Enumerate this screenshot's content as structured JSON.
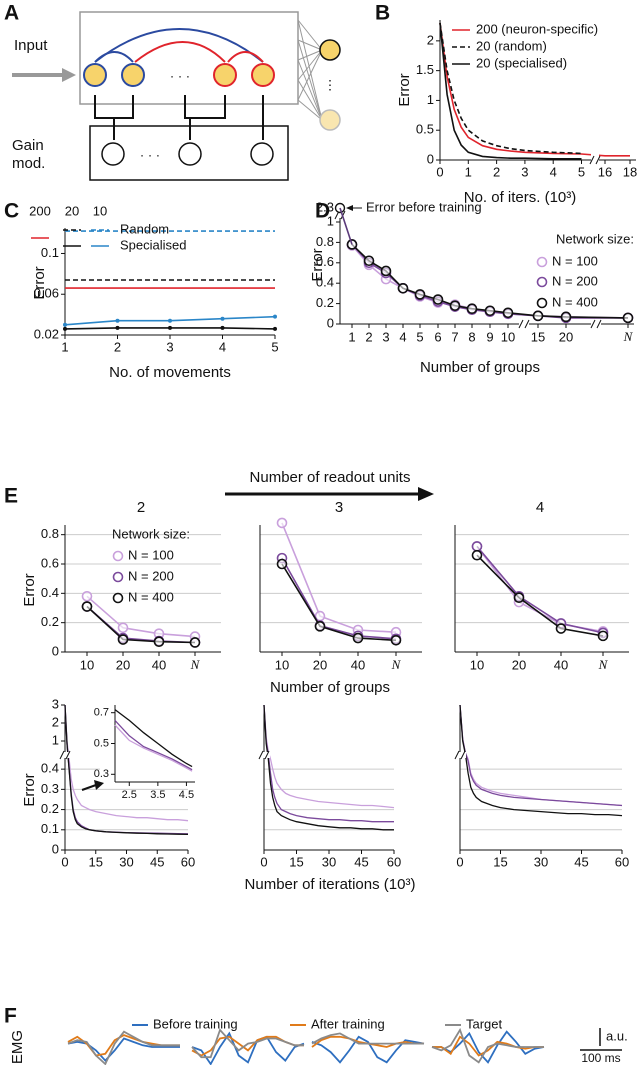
{
  "panel_a": {
    "label": "A",
    "input": "Input",
    "gain_mod": [
      "Gain",
      "mod."
    ],
    "dots": "· · ·",
    "vdots": "⋮"
  },
  "readout_header": "Number of readout units",
  "emg": {
    "ylabel": "EMG",
    "amplitude": "a.u.",
    "time": "100 ms"
  },
  "chart_data": [
    {
      "panel": "B",
      "type": "line",
      "ylabel": "Error",
      "xlabel": "No. of iters. (10³)",
      "x": [
        0,
        0.25,
        0.5,
        0.75,
        1,
        1.5,
        2,
        2.5,
        3,
        4,
        5,
        16,
        17,
        18
      ],
      "xlim": [
        0,
        18
      ],
      "xticks": [
        0,
        1,
        2,
        3,
        4,
        5,
        16,
        18
      ],
      "ylim": [
        0,
        2.35
      ],
      "yticks": [
        0,
        0.5,
        1,
        1.5,
        2
      ],
      "series": [
        {
          "name": "200 (neuron-specific)",
          "color": "#e0242c",
          "dash": false,
          "values": [
            2.3,
            1.4,
            0.85,
            0.55,
            0.38,
            0.24,
            0.18,
            0.15,
            0.13,
            0.11,
            0.1,
            0.07,
            0.07,
            0.07
          ]
        },
        {
          "name": "20 (random)",
          "color": "#111111",
          "dash": true,
          "values": [
            2.3,
            1.5,
            1.0,
            0.7,
            0.5,
            0.32,
            0.24,
            0.19,
            0.16,
            0.13,
            0.11,
            null,
            null,
            null
          ]
        },
        {
          "name": "20 (specialised)",
          "color": "#111111",
          "dash": false,
          "values": [
            2.3,
            1.1,
            0.5,
            0.25,
            0.13,
            0.06,
            0.04,
            0.03,
            0.03,
            0.02,
            0.02,
            null,
            null,
            null
          ]
        }
      ]
    },
    {
      "panel": "C",
      "type": "line",
      "ylabel": "Error",
      "xlabel": "No. of movements",
      "legend": {
        "columns": [
          "200",
          "20",
          "10"
        ],
        "rows": [
          "Random",
          "Specialised"
        ]
      },
      "x": [
        1,
        2,
        3,
        4,
        5
      ],
      "xlim": [
        1,
        5
      ],
      "xticks": [
        1,
        2,
        3,
        4,
        5
      ],
      "ylim": [
        0.02,
        0.125
      ],
      "yticks": [
        0.02,
        0.06,
        0.1
      ],
      "series": [
        {
          "color": "#e0242c",
          "dash": false,
          "values": [
            0.066,
            0.066,
            0.066,
            0.066,
            0.066
          ]
        },
        {
          "color": "#111111",
          "dash": true,
          "values": [
            0.074,
            0.074,
            0.074,
            0.074,
            0.074
          ]
        },
        {
          "color": "#2a86c8",
          "dash": true,
          "values": [
            0.122,
            0.122,
            0.122,
            0.122,
            0.122
          ]
        },
        {
          "color": "#111111",
          "dash": false,
          "marker": "dot",
          "values": [
            0.026,
            0.027,
            0.027,
            0.027,
            0.026
          ]
        },
        {
          "color": "#2a86c8",
          "dash": false,
          "marker": "dot",
          "values": [
            0.03,
            0.034,
            0.034,
            0.036,
            0.038
          ]
        }
      ]
    },
    {
      "panel": "D",
      "type": "line",
      "ylabel": "Error",
      "xlabel": "Number of groups",
      "legend_title": "Network size:",
      "initial": {
        "label": "Error before training",
        "value": 2.3
      },
      "categories": [
        "1",
        "2",
        "3",
        "4",
        "5",
        "6",
        "7",
        "8",
        "9",
        "10",
        "15",
        "20",
        "N"
      ],
      "ylim": [
        0,
        2.3
      ],
      "yticks": [
        0,
        0.2,
        0.4,
        0.6,
        0.8,
        1,
        2.3
      ],
      "series": [
        {
          "name": "N = 100",
          "color": "#c9a0dc",
          "marker": "open",
          "values": [
            0.77,
            0.58,
            0.44,
            0.35,
            0.27,
            0.21,
            0.19,
            0.15,
            0.12,
            0.1,
            0.08,
            0.07,
            0.06
          ]
        },
        {
          "name": "N = 200",
          "color": "#7b4a9c",
          "marker": "open",
          "values": [
            0.78,
            0.6,
            0.5,
            0.35,
            0.28,
            0.22,
            0.17,
            0.14,
            0.12,
            0.1,
            0.08,
            0.06,
            0.06
          ]
        },
        {
          "name": "N = 400",
          "color": "#111111",
          "marker": "open",
          "values": [
            0.78,
            0.62,
            0.52,
            0.35,
            0.29,
            0.24,
            0.18,
            0.15,
            0.13,
            0.11,
            0.08,
            0.07,
            0.06
          ]
        }
      ]
    },
    {
      "panel": "E",
      "type": "line",
      "title": "2",
      "ylabel": "Error",
      "legend_title": "Network size:",
      "grid": true,
      "categories": [
        "10",
        "20",
        "40",
        "N"
      ],
      "ylim": [
        0,
        0.9
      ],
      "yticks": [
        0,
        0.2,
        0.4,
        0.6,
        0.8
      ],
      "series": [
        {
          "name": "N = 100",
          "color": "#c9a0dc",
          "marker": "open",
          "values": [
            0.38,
            0.165,
            0.125,
            0.105
          ]
        },
        {
          "name": "N = 200",
          "color": "#7b4a9c",
          "marker": "open",
          "values": [
            0.31,
            0.095,
            0.075,
            0.065
          ]
        },
        {
          "name": "N = 400",
          "color": "#111111",
          "marker": "open",
          "values": [
            0.31,
            0.085,
            0.07,
            0.065
          ]
        }
      ]
    },
    {
      "type": "line",
      "title": "3",
      "xlabel": "Number of groups",
      "grid": true,
      "categories": [
        "10",
        "20",
        "40",
        "N"
      ],
      "ylim": [
        0,
        0.9
      ],
      "yticks": [
        0,
        0.2,
        0.4,
        0.6,
        0.8
      ],
      "series": [
        {
          "color": "#c9a0dc",
          "marker": "open",
          "values": [
            0.88,
            0.245,
            0.15,
            0.135
          ]
        },
        {
          "color": "#7b4a9c",
          "marker": "open",
          "values": [
            0.64,
            0.18,
            0.11,
            0.09
          ]
        },
        {
          "color": "#111111",
          "marker": "open",
          "values": [
            0.6,
            0.175,
            0.095,
            0.08
          ]
        }
      ]
    },
    {
      "type": "line",
      "title": "4",
      "grid": true,
      "categories": [
        "10",
        "20",
        "40",
        "N"
      ],
      "ylim": [
        0,
        0.9
      ],
      "yticks": [
        0,
        0.2,
        0.4,
        0.6,
        0.8
      ],
      "series": [
        {
          "color": "#c9a0dc",
          "marker": "open",
          "values": [
            0.72,
            0.34,
            0.19,
            0.14
          ]
        },
        {
          "color": "#7b4a9c",
          "marker": "open",
          "values": [
            0.72,
            0.38,
            0.195,
            0.13
          ]
        },
        {
          "color": "#111111",
          "marker": "open",
          "values": [
            0.66,
            0.37,
            0.16,
            0.11
          ]
        }
      ]
    },
    {
      "type": "line",
      "ylabel": "Error",
      "grid": true,
      "x": [
        0,
        1,
        2,
        3,
        4,
        5,
        6,
        8,
        10,
        12,
        15,
        20,
        25,
        30,
        35,
        40,
        45,
        50,
        55,
        60
      ],
      "xlim": [
        0,
        60
      ],
      "xticks": [
        0,
        15,
        30,
        45,
        60
      ],
      "ylim": [
        0,
        3
      ],
      "yticks": [
        0,
        0.1,
        0.2,
        0.3,
        0.4,
        1,
        2,
        3
      ],
      "series": [
        {
          "color": "#c9a0dc",
          "values": [
            3,
            1.0,
            0.45,
            0.35,
            0.3,
            0.27,
            0.25,
            0.22,
            0.21,
            0.2,
            0.19,
            0.18,
            0.17,
            0.165,
            0.16,
            0.16,
            0.155,
            0.15,
            0.15,
            0.145
          ]
        },
        {
          "color": "#7b4a9c",
          "values": [
            3,
            0.9,
            0.4,
            0.28,
            0.2,
            0.16,
            0.14,
            0.12,
            0.11,
            0.1,
            0.095,
            0.09,
            0.088,
            0.086,
            0.085,
            0.084,
            0.083,
            0.082,
            0.081,
            0.08
          ]
        },
        {
          "color": "#111111",
          "values": [
            3,
            0.9,
            0.4,
            0.27,
            0.19,
            0.15,
            0.13,
            0.115,
            0.105,
            0.1,
            0.095,
            0.09,
            0.087,
            0.085,
            0.083,
            0.082,
            0.08,
            0.079,
            0.078,
            0.077
          ]
        }
      ]
    },
    {
      "type": "line",
      "xlabel": "Number of iterations (10³)",
      "grid": true,
      "x": [
        0,
        1,
        2,
        3,
        4,
        5,
        6,
        8,
        10,
        12,
        15,
        20,
        25,
        30,
        35,
        40,
        45,
        50,
        55,
        60
      ],
      "xlim": [
        0,
        60
      ],
      "xticks": [
        0,
        15,
        30,
        45,
        60
      ],
      "ylim": [
        0,
        3
      ],
      "yticks": [
        0,
        0.1,
        0.2,
        0.3,
        0.4,
        1,
        2,
        3
      ],
      "series": [
        {
          "color": "#c9a0dc",
          "values": [
            3,
            1.2,
            0.6,
            0.45,
            0.4,
            0.36,
            0.33,
            0.3,
            0.28,
            0.27,
            0.26,
            0.25,
            0.24,
            0.235,
            0.23,
            0.225,
            0.22,
            0.22,
            0.215,
            0.21
          ]
        },
        {
          "color": "#7b4a9c",
          "values": [
            3,
            1.0,
            0.5,
            0.38,
            0.3,
            0.26,
            0.23,
            0.2,
            0.19,
            0.18,
            0.17,
            0.16,
            0.155,
            0.15,
            0.15,
            0.145,
            0.145,
            0.14,
            0.14,
            0.14
          ]
        },
        {
          "color": "#111111",
          "values": [
            3,
            0.9,
            0.45,
            0.33,
            0.26,
            0.22,
            0.19,
            0.17,
            0.16,
            0.15,
            0.14,
            0.13,
            0.12,
            0.115,
            0.11,
            0.11,
            0.105,
            0.105,
            0.1,
            0.1
          ]
        }
      ]
    },
    {
      "type": "line",
      "grid": true,
      "x": [
        0,
        1,
        2,
        3,
        4,
        5,
        6,
        8,
        10,
        12,
        15,
        20,
        25,
        30,
        35,
        40,
        45,
        50,
        55,
        60
      ],
      "xlim": [
        0,
        60
      ],
      "xticks": [
        0,
        15,
        30,
        45,
        60
      ],
      "ylim": [
        0,
        3
      ],
      "yticks": [
        0,
        0.1,
        0.2,
        0.3,
        0.4,
        1,
        2,
        3
      ],
      "series": [
        {
          "color": "#c9a0dc",
          "values": [
            3,
            1.1,
            0.55,
            0.45,
            0.38,
            0.35,
            0.33,
            0.31,
            0.3,
            0.29,
            0.28,
            0.27,
            0.26,
            0.25,
            0.245,
            0.24,
            0.235,
            0.23,
            0.225,
            0.22
          ]
        },
        {
          "color": "#7b4a9c",
          "values": [
            3,
            1.1,
            0.55,
            0.44,
            0.37,
            0.34,
            0.32,
            0.3,
            0.29,
            0.28,
            0.27,
            0.26,
            0.255,
            0.25,
            0.245,
            0.24,
            0.235,
            0.23,
            0.225,
            0.22
          ]
        },
        {
          "color": "#111111",
          "values": [
            3,
            1.0,
            0.5,
            0.38,
            0.31,
            0.28,
            0.26,
            0.24,
            0.23,
            0.22,
            0.21,
            0.2,
            0.195,
            0.19,
            0.185,
            0.18,
            0.18,
            0.175,
            0.175,
            0.17
          ]
        }
      ]
    },
    {
      "type": "line",
      "x": [
        2,
        2.5,
        3,
        3.5,
        4,
        4.5,
        4.7
      ],
      "xlim": [
        2,
        4.8
      ],
      "xticks": [
        2.5,
        3.5,
        4.5
      ],
      "ylim": [
        0.25,
        0.75
      ],
      "yticks": [
        0.3,
        0.5,
        0.7
      ],
      "series": [
        {
          "color": "#c9a0dc",
          "values": [
            0.62,
            0.52,
            0.47,
            0.43,
            0.39,
            0.34,
            0.32
          ]
        },
        {
          "color": "#7b4a9c",
          "values": [
            0.65,
            0.55,
            0.48,
            0.44,
            0.4,
            0.35,
            0.33
          ]
        },
        {
          "color": "#111111",
          "values": [
            0.72,
            0.65,
            0.57,
            0.5,
            0.43,
            0.37,
            0.35
          ]
        }
      ]
    },
    {
      "panel": "F",
      "type": "line",
      "ylim": [
        -1,
        1
      ],
      "series": [
        {
          "name": "Before training",
          "color": "#2e6fc0",
          "values": [
            0.2,
            0.3,
            0.2,
            -0.2,
            -0.8,
            -0.2,
            0.5,
            0.3,
            0.1,
            0.0,
            0.0,
            0.0,
            0.0
          ]
        },
        {
          "name": "After training",
          "color": "#e07b1a",
          "values": [
            0.3,
            0.6,
            0.2,
            -0.5,
            -0.4,
            0.4,
            0.7,
            0.5,
            0.3,
            0.2,
            0.1,
            0.1,
            0.1
          ]
        },
        {
          "name": "Target",
          "color": "#8a8a8a",
          "values": [
            0.2,
            0.4,
            0.3,
            -0.5,
            -1.0,
            0.2,
            0.9,
            0.6,
            0.3,
            0.1,
            0.1,
            0.1,
            0.1
          ]
        }
      ]
    },
    {
      "type": "line",
      "ylim": [
        -1,
        1
      ],
      "series": [
        {
          "color": "#2e6fc0",
          "values": [
            0.0,
            -0.2,
            -1.0,
            0.0,
            0.8,
            -0.5,
            -0.9,
            0.4,
            0.6,
            -0.3,
            -0.8,
            0.0,
            0.2
          ]
        },
        {
          "color": "#e07b1a",
          "values": [
            -0.2,
            -0.5,
            -0.2,
            0.5,
            0.6,
            0.2,
            -0.2,
            0.4,
            0.6,
            0.6,
            0.3,
            0.1,
            0.1
          ]
        },
        {
          "color": "#8a8a8a",
          "values": [
            0.0,
            -0.6,
            -0.6,
            1.0,
            0.4,
            -0.2,
            0.2,
            0.3,
            0.5,
            0.5,
            0.3,
            0.1,
            0.1
          ]
        }
      ]
    },
    {
      "type": "line",
      "ylim": [
        -1,
        1
      ],
      "series": [
        {
          "color": "#2e6fc0",
          "values": [
            0.3,
            0.1,
            -0.3,
            -0.9,
            -0.2,
            0.6,
            0.3,
            -0.6,
            -0.9,
            -0.2,
            0.4,
            0.3,
            0.2
          ]
        },
        {
          "color": "#e07b1a",
          "values": [
            0.0,
            0.4,
            0.6,
            0.6,
            0.5,
            0.3,
            0.2,
            0.1,
            0.0,
            0.2,
            0.3,
            0.2,
            0.2
          ]
        },
        {
          "color": "#8a8a8a",
          "values": [
            0.2,
            0.5,
            0.7,
            0.8,
            0.5,
            0.2,
            0.2,
            0.2,
            0.2,
            0.2,
            0.2,
            0.2,
            0.2
          ]
        }
      ]
    },
    {
      "type": "line",
      "ylim": [
        -1,
        1
      ],
      "series": [
        {
          "color": "#2e6fc0",
          "values": [
            0.0,
            0.0,
            -0.3,
            0.2,
            0.8,
            -0.3,
            -0.9,
            0.1,
            0.9,
            0.3,
            -0.4,
            -0.1,
            0.0
          ]
        },
        {
          "color": "#e07b1a",
          "values": [
            0.0,
            0.0,
            -0.4,
            0.6,
            0.2,
            -0.5,
            -0.2,
            0.3,
            0.2,
            0.0,
            -0.1,
            0.0,
            0.0
          ]
        },
        {
          "color": "#8a8a8a",
          "values": [
            0.0,
            -0.2,
            0.1,
            1.0,
            -0.5,
            -0.9,
            0.0,
            0.2,
            0.1,
            0.0,
            0.0,
            0.0,
            0.0
          ]
        }
      ]
    }
  ]
}
